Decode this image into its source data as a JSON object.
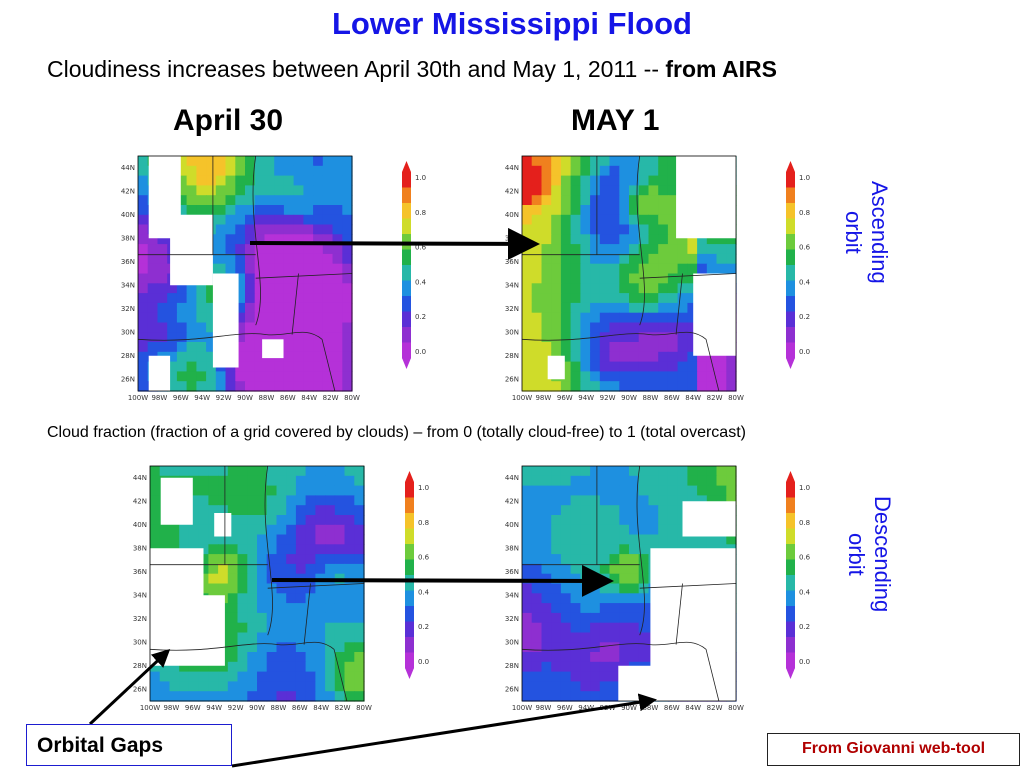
{
  "title": "Lower Mississippi Flood",
  "subtitle": {
    "text": "Cloudiness increases between April 30th and May 1, 2011 -- ",
    "bold": "from AIRS"
  },
  "columns": {
    "left": "April 30",
    "right": "MAY 1"
  },
  "caption": "Cloud fraction (fraction of a grid covered by clouds) – from 0 (totally cloud-free) to  1 (total overcast)",
  "orbits": {
    "ascending": "Ascending orbit",
    "descending": "Descending orbit"
  },
  "callouts": {
    "orbital_gaps": "Orbital Gaps",
    "source": "From Giovanni web-tool"
  },
  "maps": {
    "lat_ticks": [
      "44N",
      "42N",
      "40N",
      "38N",
      "36N",
      "34N",
      "32N",
      "30N",
      "28N",
      "26N"
    ],
    "lon_ticks": [
      "100W",
      "98W",
      "96W",
      "94W",
      "92W",
      "90W",
      "88W",
      "86W",
      "84W",
      "82W",
      "80W"
    ]
  },
  "colorbar": {
    "ticks": [
      "1.0",
      "0.8",
      "0.6",
      "0.4",
      "0.2",
      "0.0"
    ],
    "colors": [
      "#e4201c",
      "#f0801e",
      "#f5c32a",
      "#cfdc2a",
      "#6dcb3c",
      "#21b14a",
      "#27b8a8",
      "#1e90e0",
      "#2453e0",
      "#5a2fd6",
      "#8e2fd0",
      "#b531d8"
    ]
  },
  "chart_data": [
    {
      "type": "heatmap",
      "title": "",
      "panel": "April 30 ascending",
      "xlim": [
        "100W",
        "80W"
      ],
      "ylim": [
        "26N",
        "44N"
      ],
      "value_range": [
        0,
        1
      ]
    },
    {
      "type": "heatmap",
      "title": "",
      "panel": "MAY 1 ascending",
      "xlim": [
        "100W",
        "80W"
      ],
      "ylim": [
        "26N",
        "44N"
      ],
      "value_range": [
        0,
        1
      ]
    },
    {
      "type": "heatmap",
      "title": "",
      "panel": "April 30 descending",
      "xlim": [
        "100W",
        "80W"
      ],
      "ylim": [
        "26N",
        "44N"
      ],
      "value_range": [
        0,
        1
      ]
    },
    {
      "type": "heatmap",
      "title": "",
      "panel": "MAY 1 descending",
      "xlim": [
        "100W",
        "80W"
      ],
      "ylim": [
        "26N",
        "44N"
      ],
      "value_range": [
        0,
        1
      ]
    }
  ]
}
